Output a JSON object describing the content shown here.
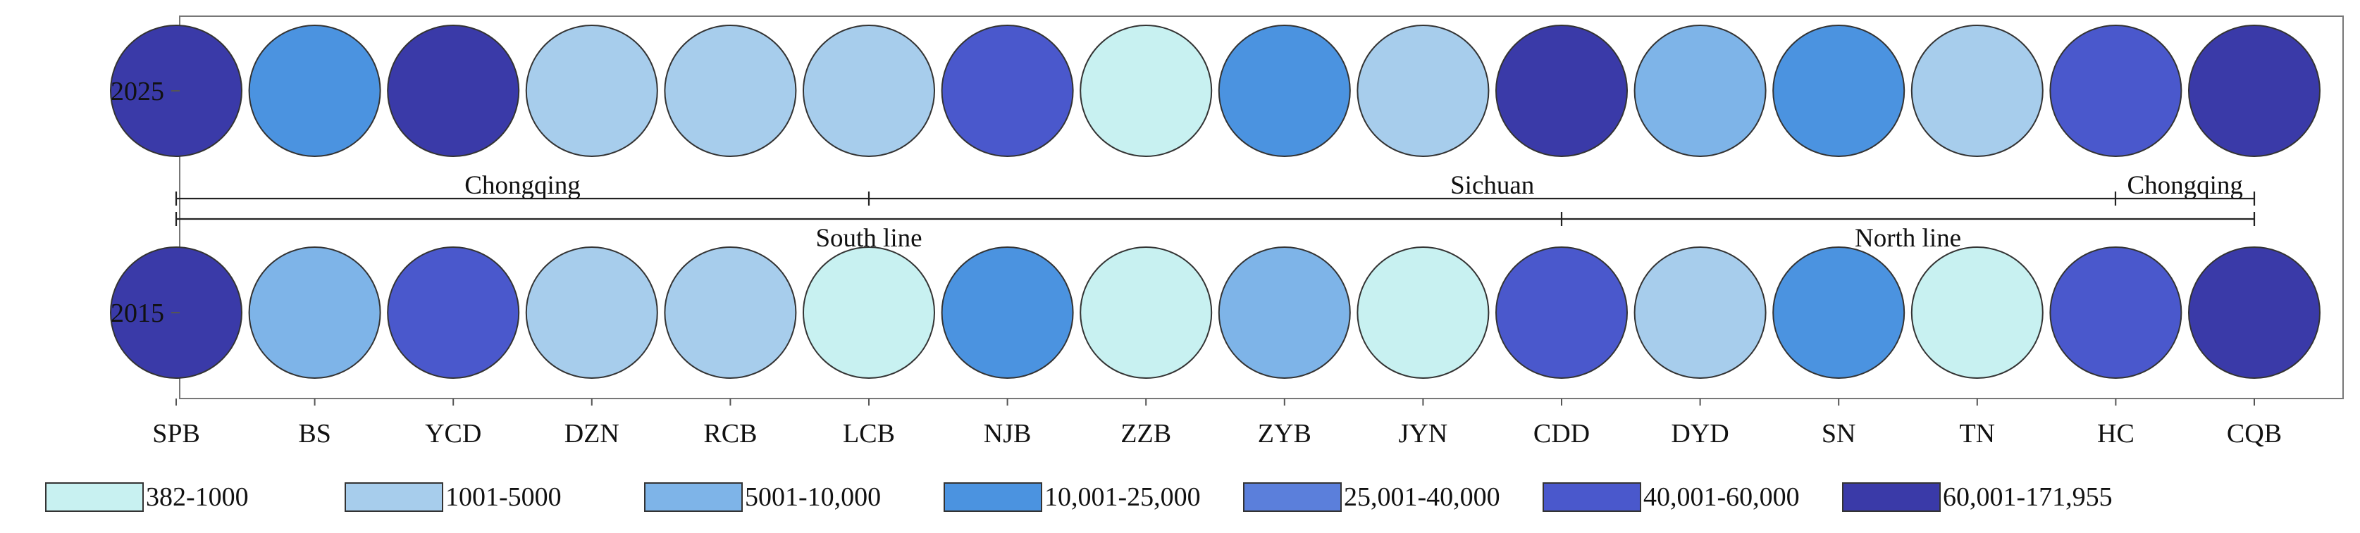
{
  "chart_data": {
    "type": "proportional-circle matrix",
    "years": [
      "2025",
      "2015"
    ],
    "categories": [
      "SPB",
      "BS",
      "YCD",
      "DZN",
      "RCB",
      "LCB",
      "NJB",
      "ZZB",
      "ZYB",
      "JYN",
      "CDD",
      "DYD",
      "SN",
      "TN",
      "HC",
      "CQB"
    ],
    "series": [
      {
        "name": "2025",
        "class_index": [
          6,
          3,
          6,
          1,
          1,
          1,
          5,
          0,
          3,
          1,
          6,
          2,
          3,
          1,
          5,
          6
        ]
      },
      {
        "name": "2015",
        "class_index": [
          6,
          2,
          5,
          1,
          1,
          0,
          3,
          0,
          2,
          0,
          5,
          1,
          3,
          0,
          5,
          6
        ]
      }
    ],
    "legend": [
      {
        "label": "382-1000",
        "color": "#c8f1f1"
      },
      {
        "label": "1001-5000",
        "color": "#a7cdec"
      },
      {
        "label": "5001-10,000",
        "color": "#7eb4e8"
      },
      {
        "label": "10,001-25,000",
        "color": "#4b93e0"
      },
      {
        "label": "25,001-40,000",
        "color": "#5b7fdb"
      },
      {
        "label": "40,001-60,000",
        "color": "#4a58cc"
      },
      {
        "label": "60,001-171,955",
        "color": "#3a3aa8"
      }
    ],
    "legend_placement": "bottom",
    "brackets_top": [
      {
        "label": "Chongqing",
        "from": "SPB",
        "to": "LCB"
      },
      {
        "label": "Sichuan",
        "from": "LCB",
        "to": "HC"
      },
      {
        "label": "Chongqing",
        "from": "HC",
        "to": "CQB"
      }
    ],
    "brackets_bottom": [
      {
        "label": "South line",
        "from": "SPB",
        "to": "CDD"
      },
      {
        "label": "North line",
        "from": "CDD",
        "to": "CQB"
      }
    ]
  },
  "colors": {
    "circle_stroke": "#333333",
    "frame": "#777777",
    "axis": "#555555"
  }
}
